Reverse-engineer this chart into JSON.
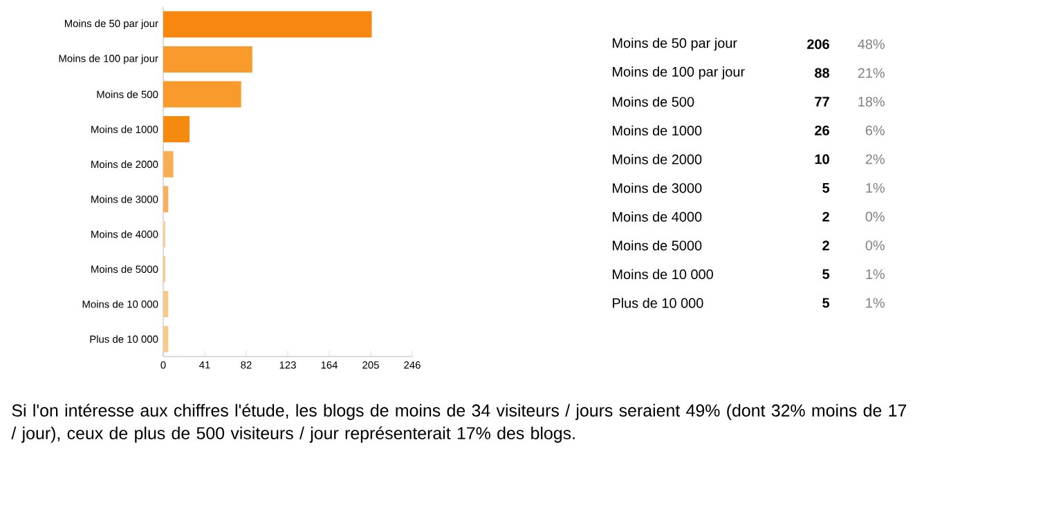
{
  "chart_data": [
    {
      "type": "bar",
      "orientation": "horizontal",
      "categories": [
        "Moins de 50 par jour",
        "Moins de 100 par jour",
        "Moins de 500",
        "Moins de 1000",
        "Moins de 2000",
        "Moins de 3000",
        "Moins de 4000",
        "Moins de 5000",
        "Moins de 10 000",
        "Plus de 10 000"
      ],
      "values": [
        206,
        88,
        77,
        26,
        10,
        5,
        2,
        2,
        5,
        5
      ],
      "colors": [
        "#f7870f",
        "#f99b2c",
        "#f99b2c",
        "#f58a10",
        "#f9ae55",
        "#f7b060",
        "#f9cf9a",
        "#f9c98c",
        "#f9c98c",
        "#f9c98c"
      ],
      "xlim": [
        0,
        246
      ],
      "xticks": [
        0,
        41,
        82,
        123,
        164,
        205,
        246
      ],
      "grid": false,
      "annotations": [
        "Si l'on intéresse aux chiffres l'étude, les blogs de moins de 34 visiteurs / jours seraient 49% (dont 32% moins de 17 / jour), ceux de plus de 500 visiteurs / jour représenterait 17% des blogs."
      ]
    },
    {
      "type": "other",
      "categories": [
        "Moins de 50 par jour",
        "Moins de 100 par jour",
        "Moins de 500",
        "Moins de 1000",
        "Moins de 2000",
        "Moins de 3000",
        "Moins de 4000",
        "Moins de 5000",
        "Moins de 10 000",
        "Plus de 10 000"
      ],
      "values": [
        206,
        88,
        77,
        26,
        10,
        5,
        2,
        2,
        5,
        5
      ],
      "data_labels": true,
      "annotations": [
        "48%",
        "21%",
        "18%",
        "6%",
        "2%",
        "1%",
        "0%",
        "0%",
        "1%",
        "1%"
      ]
    }
  ]
}
